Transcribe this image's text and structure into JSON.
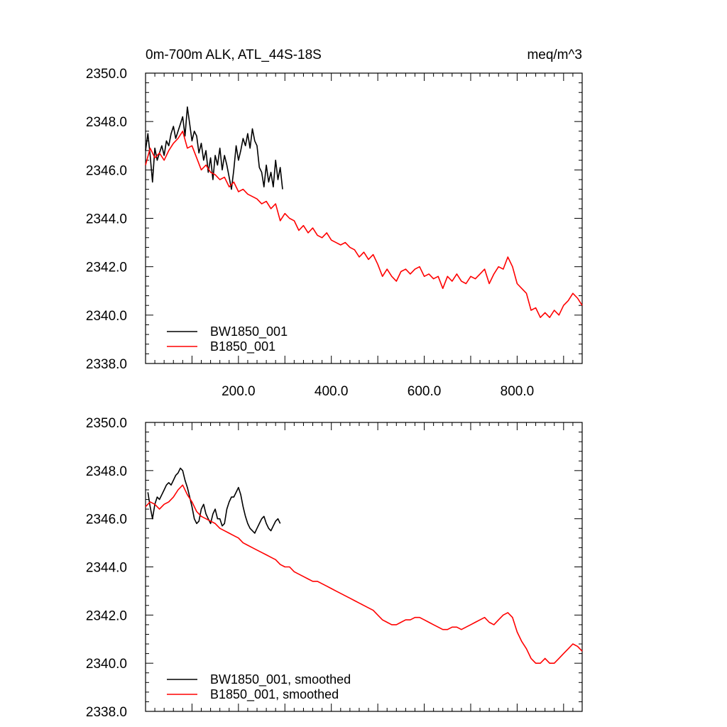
{
  "chart_data": [
    {
      "type": "line",
      "title": "0m-700m ALK, ATL_44S-18S",
      "units": "meq/m^3",
      "xlim": [
        0,
        940
      ],
      "ylim": [
        2338,
        2350
      ],
      "xticks": [
        200,
        400,
        600,
        800
      ],
      "xtick_labels": [
        "200.0",
        "400.0",
        "600.0",
        "800.0"
      ],
      "yticks": [
        2338,
        2340,
        2342,
        2344,
        2346,
        2348,
        2350
      ],
      "ytick_labels": [
        "2338.0",
        "2340.0",
        "2342.0",
        "2344.0",
        "2346.0",
        "2348.0",
        "2350.0"
      ],
      "legend_position": "bottom-left",
      "series": [
        {
          "name": "BW1850_001",
          "color": "#000000",
          "x": [
            0,
            5,
            10,
            15,
            20,
            25,
            30,
            35,
            40,
            45,
            50,
            55,
            60,
            65,
            70,
            75,
            80,
            85,
            90,
            95,
            100,
            105,
            110,
            115,
            120,
            125,
            130,
            135,
            140,
            145,
            150,
            155,
            160,
            165,
            170,
            175,
            180,
            185,
            190,
            195,
            200,
            205,
            210,
            215,
            220,
            225,
            230,
            235,
            240,
            245,
            250,
            255,
            260,
            265,
            270,
            275,
            280,
            285,
            290,
            295
          ],
          "values": [
            2346.8,
            2347.5,
            2346.6,
            2345.5,
            2346.9,
            2346.4,
            2346.7,
            2347.0,
            2346.6,
            2347.2,
            2347.0,
            2347.5,
            2347.8,
            2347.3,
            2347.6,
            2347.9,
            2348.2,
            2347.4,
            2348.6,
            2347.9,
            2347.2,
            2347.6,
            2347.4,
            2346.7,
            2347.1,
            2346.4,
            2346.8,
            2345.9,
            2346.5,
            2345.6,
            2346.6,
            2346.2,
            2346.9,
            2346.0,
            2346.6,
            2346.2,
            2345.7,
            2345.2,
            2346.0,
            2347.0,
            2346.4,
            2346.8,
            2347.3,
            2347.0,
            2347.5,
            2346.9,
            2347.7,
            2347.2,
            2347.0,
            2346.1,
            2345.9,
            2345.3,
            2346.2,
            2345.5,
            2345.9,
            2345.3,
            2346.4,
            2345.6,
            2346.1,
            2345.2
          ]
        },
        {
          "name": "B1850_001",
          "color": "#ff0000",
          "x": [
            0,
            10,
            20,
            30,
            40,
            50,
            60,
            70,
            80,
            90,
            100,
            110,
            120,
            130,
            140,
            150,
            160,
            170,
            180,
            190,
            200,
            210,
            220,
            230,
            240,
            250,
            260,
            270,
            280,
            290,
            300,
            310,
            320,
            330,
            340,
            350,
            360,
            370,
            380,
            390,
            400,
            410,
            420,
            430,
            440,
            450,
            460,
            470,
            480,
            490,
            500,
            510,
            520,
            530,
            540,
            550,
            560,
            570,
            580,
            590,
            600,
            610,
            620,
            630,
            640,
            650,
            660,
            670,
            680,
            690,
            700,
            710,
            720,
            730,
            740,
            750,
            760,
            770,
            780,
            790,
            800,
            810,
            820,
            830,
            840,
            850,
            860,
            870,
            880,
            890,
            900,
            910,
            920,
            930,
            940
          ],
          "values": [
            2346.2,
            2346.9,
            2346.5,
            2346.7,
            2346.4,
            2346.8,
            2347.1,
            2347.3,
            2347.6,
            2346.9,
            2347.0,
            2346.5,
            2346.0,
            2346.2,
            2345.9,
            2345.8,
            2345.6,
            2345.7,
            2345.3,
            2345.5,
            2345.1,
            2345.2,
            2345.0,
            2344.9,
            2344.8,
            2344.6,
            2344.7,
            2344.4,
            2344.6,
            2343.9,
            2344.2,
            2344.0,
            2343.9,
            2343.5,
            2343.7,
            2343.4,
            2343.6,
            2343.3,
            2343.2,
            2343.4,
            2343.1,
            2343.0,
            2342.9,
            2343.0,
            2342.8,
            2342.7,
            2342.4,
            2342.6,
            2342.3,
            2342.5,
            2342.1,
            2341.6,
            2341.9,
            2341.6,
            2341.4,
            2341.8,
            2341.9,
            2341.7,
            2341.9,
            2342.0,
            2341.6,
            2341.7,
            2341.5,
            2341.6,
            2341.1,
            2341.6,
            2341.4,
            2341.7,
            2341.4,
            2341.3,
            2341.6,
            2341.5,
            2341.7,
            2341.9,
            2341.3,
            2341.7,
            2342.0,
            2341.9,
            2342.4,
            2342.0,
            2341.3,
            2341.1,
            2340.9,
            2340.2,
            2340.3,
            2339.9,
            2340.1,
            2339.9,
            2340.2,
            2340.0,
            2340.4,
            2340.6,
            2340.9,
            2340.7,
            2340.4
          ]
        }
      ]
    },
    {
      "type": "line",
      "title": "",
      "units": "",
      "xlim": [
        0,
        940
      ],
      "ylim": [
        2338,
        2350
      ],
      "yticks": [
        2338,
        2340,
        2342,
        2344,
        2346,
        2348,
        2350
      ],
      "ytick_labels": [
        "2338.0",
        "2340.0",
        "2342.0",
        "2344.0",
        "2346.0",
        "2348.0",
        "2350.0"
      ],
      "legend_position": "bottom-left",
      "series": [
        {
          "name": "BW1850_001, smoothed",
          "color": "#000000",
          "x": [
            5,
            10,
            15,
            20,
            25,
            30,
            35,
            40,
            45,
            50,
            55,
            60,
            65,
            70,
            75,
            80,
            85,
            90,
            95,
            100,
            105,
            110,
            115,
            120,
            125,
            130,
            135,
            140,
            145,
            150,
            155,
            160,
            165,
            170,
            175,
            180,
            185,
            190,
            195,
            200,
            205,
            210,
            215,
            220,
            225,
            230,
            235,
            240,
            245,
            250,
            255,
            260,
            265,
            270,
            275,
            280,
            285,
            290
          ],
          "values": [
            2347.1,
            2346.5,
            2346.0,
            2346.6,
            2346.9,
            2346.8,
            2347.0,
            2347.2,
            2347.4,
            2347.5,
            2347.4,
            2347.6,
            2347.8,
            2347.9,
            2348.1,
            2348.0,
            2347.6,
            2347.3,
            2346.9,
            2346.5,
            2346.0,
            2345.8,
            2345.9,
            2346.4,
            2346.6,
            2346.2,
            2346.0,
            2345.8,
            2346.2,
            2346.4,
            2346.0,
            2346.0,
            2345.7,
            2345.8,
            2346.4,
            2346.7,
            2346.9,
            2346.9,
            2347.1,
            2347.3,
            2347.0,
            2346.5,
            2346.1,
            2345.8,
            2345.6,
            2345.5,
            2345.4,
            2345.6,
            2345.8,
            2346.0,
            2346.1,
            2345.8,
            2345.6,
            2345.5,
            2345.7,
            2345.9,
            2346.0,
            2345.8
          ]
        },
        {
          "name": "B1850_001, smoothed",
          "color": "#ff0000",
          "x": [
            0,
            10,
            20,
            30,
            40,
            50,
            60,
            70,
            80,
            90,
            100,
            110,
            120,
            130,
            140,
            150,
            160,
            170,
            180,
            190,
            200,
            210,
            220,
            230,
            240,
            250,
            260,
            270,
            280,
            290,
            300,
            310,
            320,
            330,
            340,
            350,
            360,
            370,
            380,
            390,
            400,
            410,
            420,
            430,
            440,
            450,
            460,
            470,
            480,
            490,
            500,
            510,
            520,
            530,
            540,
            550,
            560,
            570,
            580,
            590,
            600,
            610,
            620,
            630,
            640,
            650,
            660,
            670,
            680,
            690,
            700,
            710,
            720,
            730,
            740,
            750,
            760,
            770,
            780,
            790,
            800,
            810,
            820,
            830,
            840,
            850,
            860,
            870,
            880,
            890,
            900,
            910,
            920,
            930,
            940
          ],
          "values": [
            2346.5,
            2346.7,
            2346.6,
            2346.4,
            2346.6,
            2346.7,
            2346.9,
            2347.2,
            2347.4,
            2347.0,
            2346.7,
            2346.3,
            2346.1,
            2346.0,
            2345.9,
            2345.8,
            2345.6,
            2345.5,
            2345.4,
            2345.3,
            2345.2,
            2345.0,
            2344.9,
            2344.8,
            2344.7,
            2344.6,
            2344.5,
            2344.4,
            2344.3,
            2344.1,
            2344.0,
            2344.0,
            2343.8,
            2343.7,
            2343.6,
            2343.5,
            2343.4,
            2343.4,
            2343.3,
            2343.2,
            2343.1,
            2343.0,
            2342.9,
            2342.8,
            2342.7,
            2342.6,
            2342.5,
            2342.4,
            2342.3,
            2342.2,
            2342.0,
            2341.8,
            2341.7,
            2341.6,
            2341.6,
            2341.7,
            2341.8,
            2341.8,
            2341.9,
            2341.9,
            2341.8,
            2341.7,
            2341.6,
            2341.5,
            2341.4,
            2341.4,
            2341.5,
            2341.5,
            2341.4,
            2341.5,
            2341.6,
            2341.7,
            2341.8,
            2341.9,
            2341.7,
            2341.6,
            2341.8,
            2342.0,
            2342.1,
            2341.9,
            2341.3,
            2340.9,
            2340.6,
            2340.2,
            2340.0,
            2340.0,
            2340.2,
            2340.0,
            2340.0,
            2340.2,
            2340.4,
            2340.6,
            2340.8,
            2340.7,
            2340.5
          ]
        }
      ]
    }
  ]
}
